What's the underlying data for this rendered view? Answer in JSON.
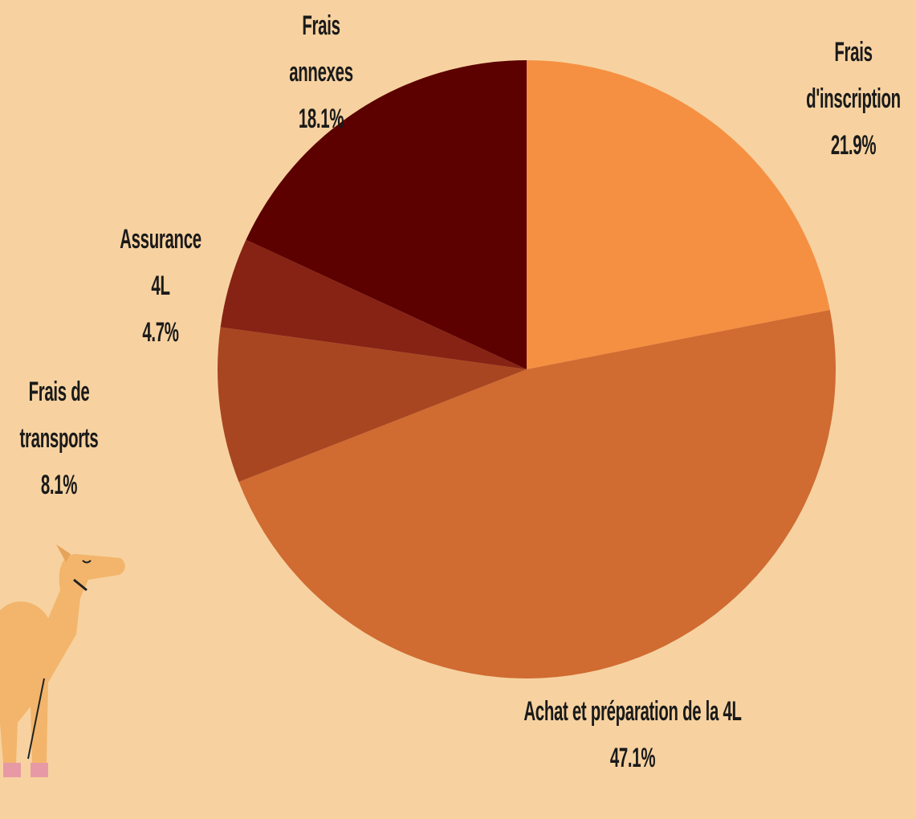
{
  "chart_data": {
    "type": "pie",
    "categories": [
      "Frais d'inscription",
      "Achat et préparation de la 4L",
      "Frais de transports",
      "Assurance 4L",
      "Frais annexes"
    ],
    "values": [
      21.9,
      47.1,
      8.1,
      4.7,
      18.1
    ],
    "value_labels": [
      "21.9%",
      "47.1%",
      "8.1%",
      "4.7%",
      "18.1%"
    ],
    "colors": [
      "#f59042",
      "#d06b32",
      "#a84621",
      "#862315",
      "#5c0000"
    ]
  }
}
